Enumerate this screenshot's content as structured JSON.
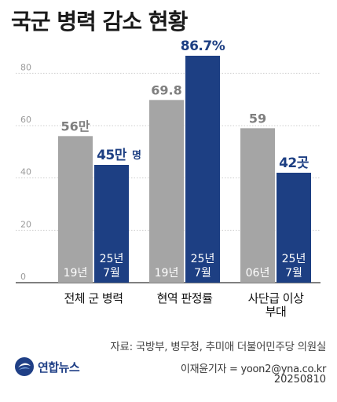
{
  "title": "국군 병력 감소 현황",
  "source": "자료: 국방부, 병무청, 추미애 더불어민주당 의원실",
  "reporter": "이재윤기자 = yoon2@yna.co.kr",
  "date": "20250810",
  "logo_text": "연합뉴스",
  "colors": {
    "past": "#a5a5a5",
    "current": "#1d3f83",
    "grid": "#cfcfcf",
    "past_label": "#7f7f7f"
  },
  "chart_data": {
    "type": "bar",
    "ylim": [
      0,
      90
    ],
    "yticks": [
      "0",
      "20",
      "40",
      "60",
      "80"
    ],
    "yticks_values": [
      0,
      20,
      40,
      60,
      80
    ],
    "grid": true,
    "categories": [
      {
        "lines": [
          "전체 군 병력"
        ]
      },
      {
        "lines": [
          "현역 판정률"
        ]
      },
      {
        "lines": [
          "사단급 이상",
          "부대"
        ]
      }
    ],
    "series": [
      {
        "period_labels": [
          [
            "19년"
          ],
          [
            "19년"
          ],
          [
            "06년"
          ]
        ],
        "values": [
          56,
          69.8,
          59
        ],
        "value_labels": [
          "56만",
          "69.8",
          "59"
        ]
      },
      {
        "period_labels": [
          [
            "25년",
            "7월"
          ],
          [
            "25년",
            "7월"
          ],
          [
            "25년",
            "7월"
          ]
        ],
        "values": [
          45,
          86.7,
          42
        ],
        "value_labels": [
          "45만",
          "86.7%",
          "42곳"
        ]
      }
    ],
    "annotations": [
      {
        "category_index": 0,
        "text": "명"
      }
    ]
  }
}
